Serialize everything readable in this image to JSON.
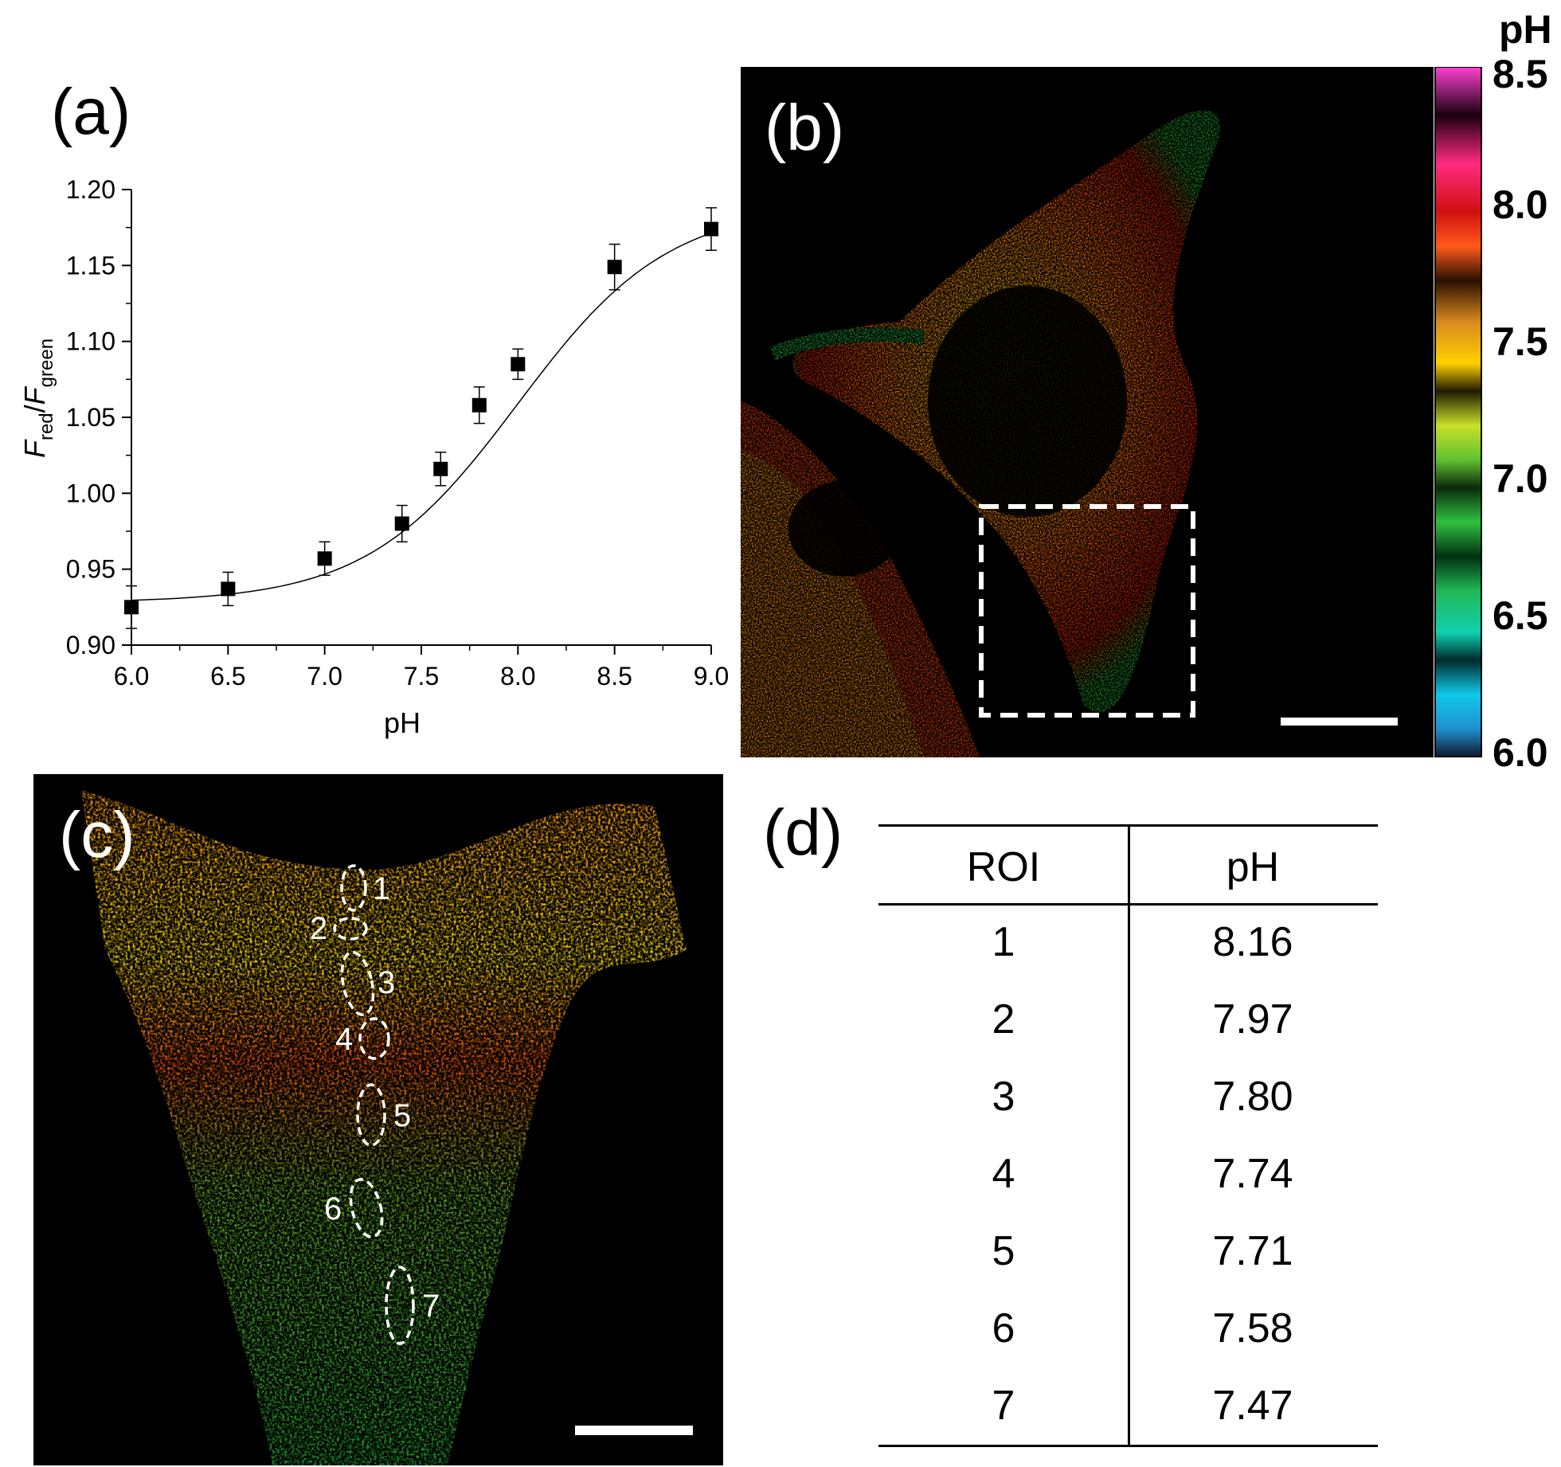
{
  "panels": {
    "a": "(a)",
    "b": "(b)",
    "c": "(c)",
    "d": "(d)"
  },
  "chart_data": {
    "type": "scatter",
    "xlabel": "pH",
    "ylabel": "F_red/F_green",
    "xlim": [
      6.0,
      9.0
    ],
    "ylim": [
      0.9,
      1.2
    ],
    "xticks": [
      "6.0",
      "6.5",
      "7.0",
      "7.5",
      "8.0",
      "8.5",
      "9.0"
    ],
    "yticks": [
      "0.90",
      "0.95",
      "1.00",
      "1.05",
      "1.10",
      "1.15",
      "1.20"
    ],
    "x": [
      6.0,
      6.5,
      7.0,
      7.4,
      7.6,
      7.8,
      8.0,
      8.5,
      9.0
    ],
    "y": [
      0.925,
      0.937,
      0.957,
      0.98,
      1.016,
      1.058,
      1.085,
      1.149,
      1.174
    ],
    "error": [
      0.014,
      0.011,
      0.011,
      0.012,
      0.011,
      0.012,
      0.01,
      0.015,
      0.014
    ],
    "fit": "sigmoidal",
    "grid": false
  },
  "colorbar": {
    "title": "pH",
    "ticks": [
      "8.5",
      "8.0",
      "7.5",
      "7.0",
      "6.5",
      "6.0"
    ]
  },
  "roi_labels": [
    "1",
    "2",
    "3",
    "4",
    "5",
    "6",
    "7"
  ],
  "table": {
    "headers": [
      "ROI",
      "pH"
    ],
    "rows": [
      [
        "1",
        "8.16"
      ],
      [
        "2",
        "7.97"
      ],
      [
        "3",
        "7.80"
      ],
      [
        "4",
        "7.74"
      ],
      [
        "5",
        "7.71"
      ],
      [
        "6",
        "7.58"
      ],
      [
        "7",
        "7.47"
      ]
    ]
  }
}
